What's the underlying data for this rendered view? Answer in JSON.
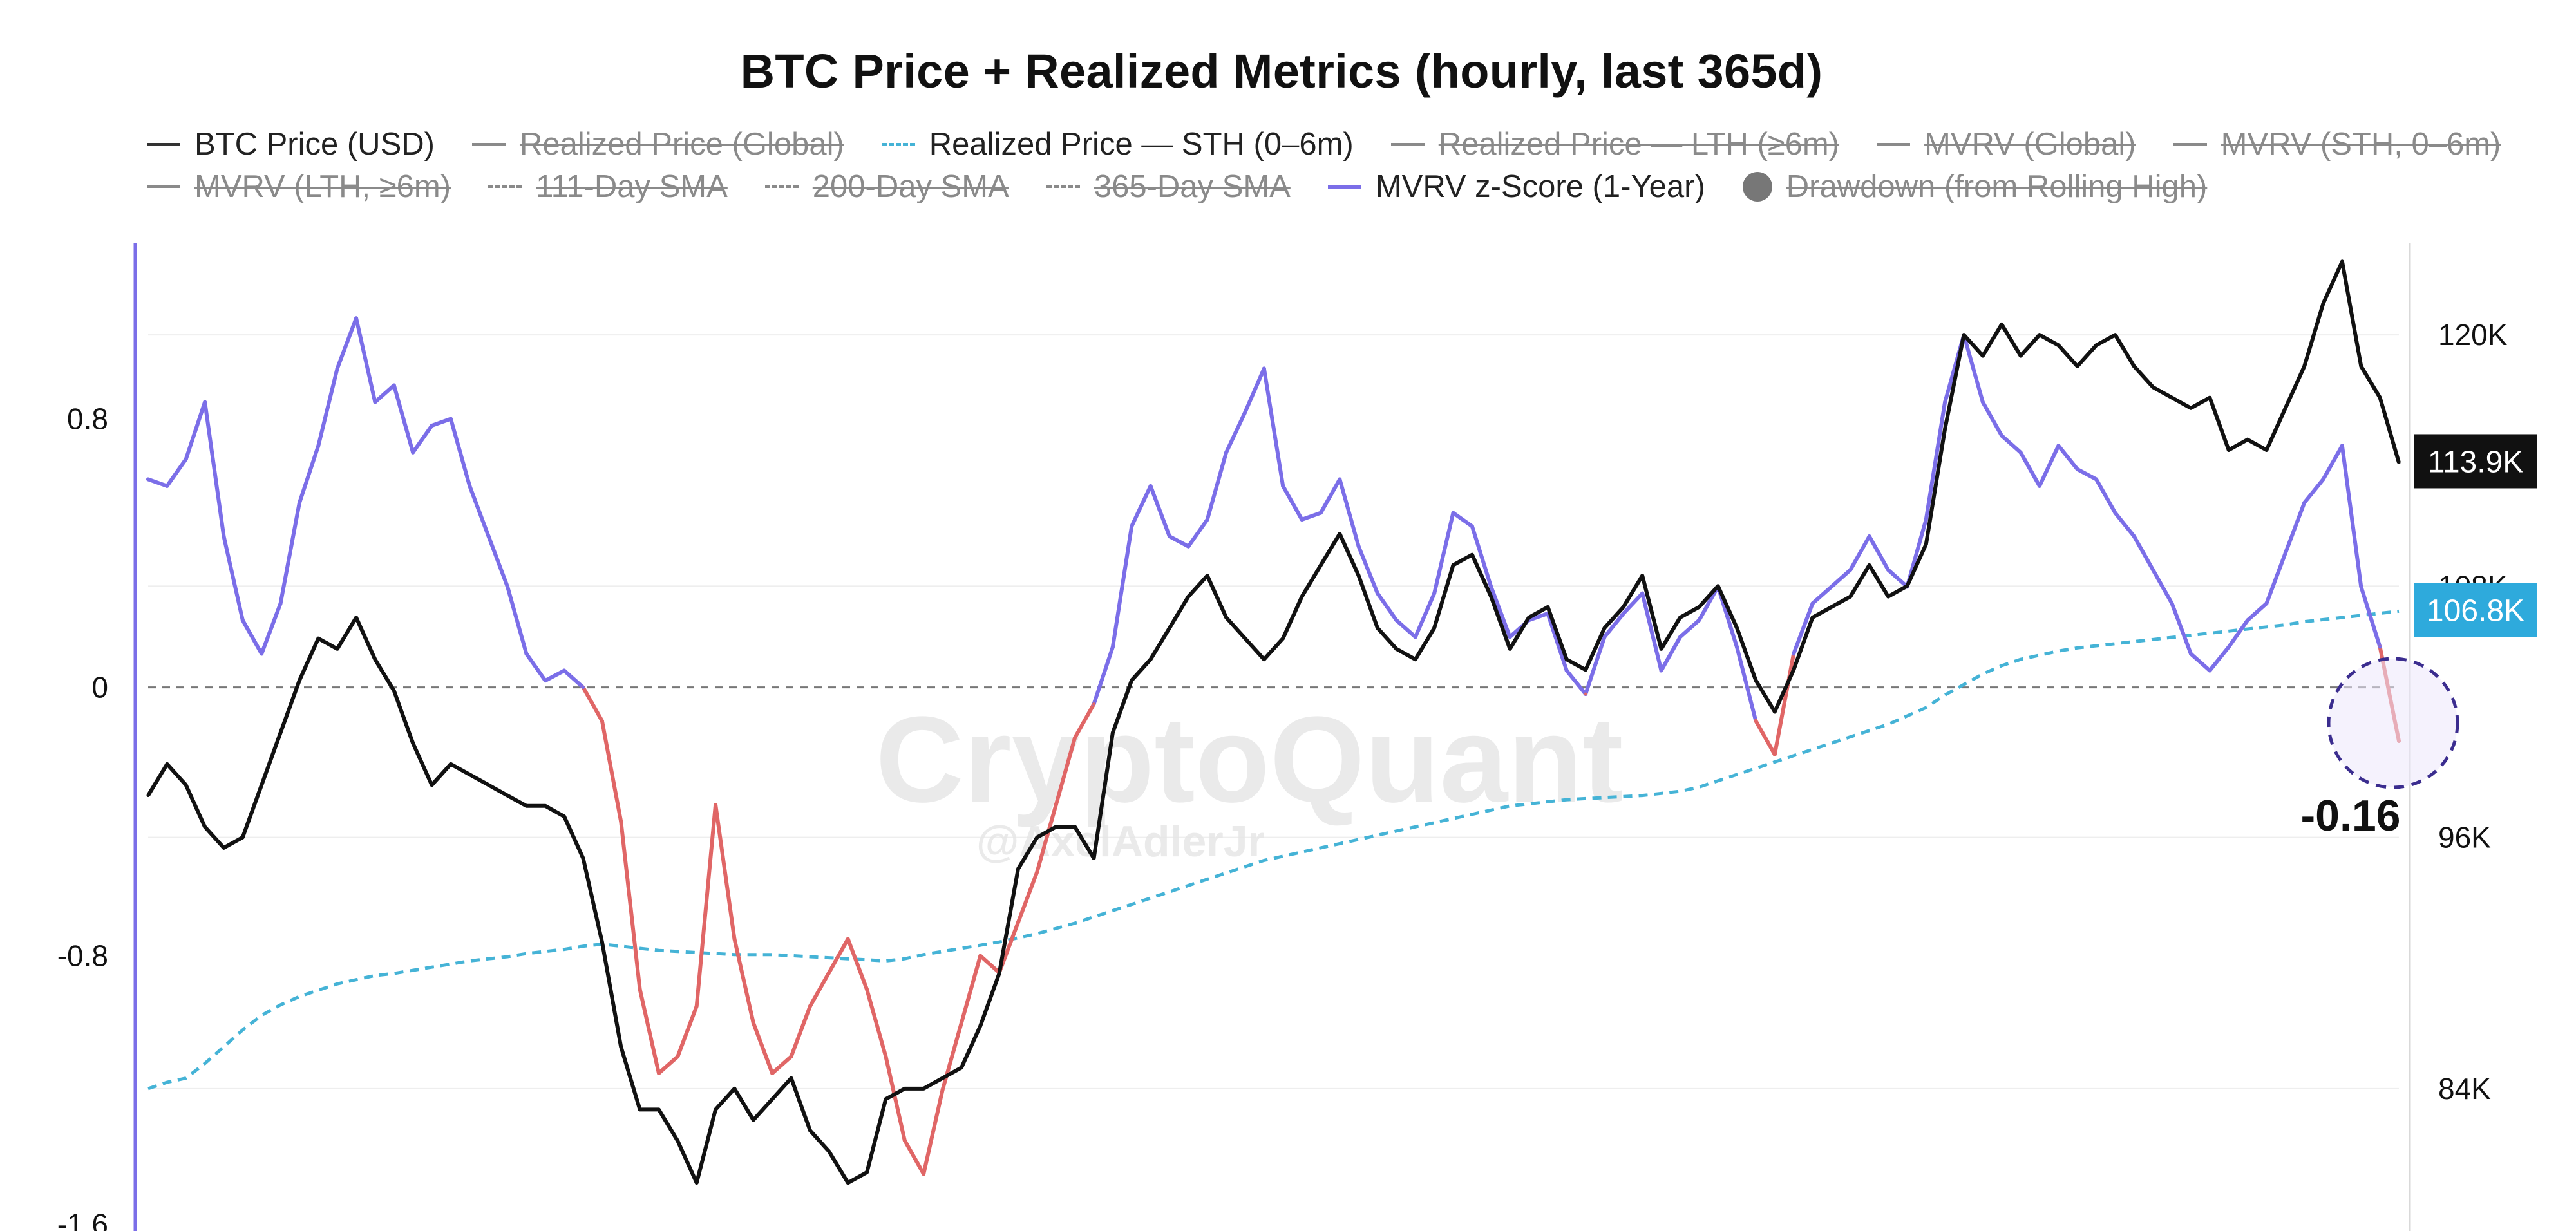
{
  "title": "BTC Price + Realized Metrics (hourly, last 365d)",
  "legend_row_1": [
    {
      "label": "BTC Price (USD)",
      "style": "solid",
      "hidden": false
    },
    {
      "label": "Realized Price (Global)",
      "style": "solid-grey",
      "hidden": true
    },
    {
      "label": "Realized Price — STH (0–6m)",
      "style": "dashed-cyan",
      "hidden": false
    },
    {
      "label": "Realized Price — LTH (≥6m)",
      "style": "solid-grey",
      "hidden": true
    },
    {
      "label": "MVRV (Global)",
      "style": "solid-grey",
      "hidden": true
    },
    {
      "label": "MVRV (STH, 0–6m)",
      "style": "solid-grey",
      "hidden": true
    }
  ],
  "legend_row_2": [
    {
      "label": "MVRV (LTH, ≥6m)",
      "style": "solid-grey",
      "hidden": true
    },
    {
      "label": "111-Day SMA",
      "style": "dashed-grey",
      "hidden": true
    },
    {
      "label": "200-Day SMA",
      "style": "dashed-grey",
      "hidden": true
    },
    {
      "label": "365-Day SMA",
      "style": "dashed-grey",
      "hidden": true
    },
    {
      "label": "MVRV z-Score (1-Year)",
      "style": "solid-purple",
      "hidden": false
    },
    {
      "label": "Drawdown (from Rolling High)",
      "style": "dot",
      "hidden": true
    }
  ],
  "watermark": "CryptoQuant",
  "watermark_handle": "@AxelAdlerJr",
  "annotation": "-0.16",
  "colors": {
    "price": "#111111",
    "zscore_positive": "#7b6ee8",
    "zscore_negative": "#e06666",
    "sth_realized": "#45b3d6",
    "last_price_badge": "#111111",
    "sth_badge": "#2eaadc",
    "left_axis_line": "#7b6ee8"
  },
  "chart_data": {
    "type": "line",
    "title": "BTC Price + Realized Metrics (hourly, last 365d)",
    "left_axis": {
      "ticks": [
        "0.8",
        "0",
        "-0.8",
        "-1.6"
      ],
      "tick_values": [
        0.8,
        0,
        -0.8,
        -1.6
      ],
      "ylim": [
        -1.62,
        1.3
      ]
    },
    "right_axis": {
      "ticks": [
        "120K",
        "108K",
        "96K",
        "84K"
      ],
      "tick_values": [
        120000,
        108000,
        96000,
        84000
      ],
      "ylim": [
        77200,
        124000
      ]
    },
    "x_points": 120,
    "series": [
      {
        "name": "BTC Price (USD)",
        "axis": "right",
        "values": [
          98000,
          99500,
          98500,
          96500,
          95500,
          96000,
          98500,
          101000,
          103500,
          105500,
          105000,
          106500,
          104500,
          103000,
          100500,
          98500,
          99500,
          99000,
          98500,
          98000,
          97500,
          97500,
          97000,
          95000,
          91000,
          86000,
          83000,
          83000,
          81500,
          79500,
          83000,
          84000,
          82500,
          83500,
          84500,
          82000,
          81000,
          79500,
          80000,
          83500,
          84000,
          84000,
          84500,
          85000,
          87000,
          89500,
          94500,
          96000,
          96500,
          96500,
          95000,
          101000,
          103500,
          104500,
          106000,
          107500,
          108500,
          106500,
          105500,
          104500,
          105500,
          107500,
          109000,
          110500,
          108500,
          106000,
          105000,
          104500,
          106000,
          109000,
          109500,
          107500,
          105000,
          106500,
          107000,
          104500,
          104000,
          106000,
          107000,
          108500,
          105000,
          106500,
          107000,
          108000,
          106000,
          103500,
          102000,
          104000,
          106500,
          107000,
          107500,
          109000,
          107500,
          108000,
          110000,
          115500,
          120000,
          119000,
          120500,
          119000,
          120000,
          119500,
          118500,
          119500,
          120000,
          118500,
          117500,
          117000,
          116500,
          117000,
          114500,
          115000,
          114500,
          116500,
          118500,
          121500,
          123500,
          118500,
          117000,
          113900
        ],
        "last_value_label": "113.9K"
      },
      {
        "name": "Realized Price — STH (0–6m)",
        "axis": "right",
        "values": [
          84000,
          84300,
          84500,
          85200,
          86000,
          86800,
          87500,
          88000,
          88400,
          88700,
          89000,
          89200,
          89400,
          89500,
          89650,
          89800,
          89950,
          90100,
          90200,
          90300,
          90450,
          90550,
          90650,
          90800,
          90900,
          90800,
          90700,
          90600,
          90550,
          90500,
          90450,
          90400,
          90400,
          90400,
          90350,
          90300,
          90250,
          90200,
          90150,
          90100,
          90200,
          90400,
          90550,
          90700,
          90850,
          91000,
          91200,
          91400,
          91650,
          91900,
          92200,
          92500,
          92800,
          93100,
          93400,
          93700,
          94000,
          94300,
          94600,
          94900,
          95100,
          95300,
          95500,
          95700,
          95900,
          96100,
          96300,
          96500,
          96700,
          96900,
          97100,
          97300,
          97500,
          97600,
          97700,
          97800,
          97850,
          97900,
          97950,
          98000,
          98100,
          98200,
          98400,
          98700,
          99000,
          99300,
          99600,
          99900,
          100200,
          100500,
          100800,
          101100,
          101400,
          101800,
          102200,
          102800,
          103300,
          103800,
          104200,
          104500,
          104700,
          104900,
          105050,
          105150,
          105250,
          105350,
          105450,
          105550,
          105650,
          105750,
          105850,
          105950,
          106050,
          106150,
          106300,
          106400,
          106500,
          106600,
          106700,
          106800
        ],
        "last_value_label": "106.8K"
      },
      {
        "name": "MVRV z-Score (1-Year)",
        "axis": "left",
        "values": [
          0.62,
          0.6,
          0.68,
          0.85,
          0.45,
          0.2,
          0.1,
          0.25,
          0.55,
          0.72,
          0.95,
          1.1,
          0.85,
          0.9,
          0.7,
          0.78,
          0.8,
          0.6,
          0.45,
          0.3,
          0.1,
          0.02,
          0.05,
          0.0,
          -0.1,
          -0.4,
          -0.9,
          -1.15,
          -1.1,
          -0.95,
          -0.35,
          -0.75,
          -1.0,
          -1.15,
          -1.1,
          -0.95,
          -0.85,
          -0.75,
          -0.9,
          -1.1,
          -1.35,
          -1.45,
          -1.2,
          -1.0,
          -0.8,
          -0.85,
          -0.7,
          -0.55,
          -0.35,
          -0.15,
          -0.05,
          0.12,
          0.48,
          0.6,
          0.45,
          0.42,
          0.5,
          0.7,
          0.82,
          0.95,
          0.6,
          0.5,
          0.52,
          0.62,
          0.42,
          0.28,
          0.2,
          0.15,
          0.28,
          0.52,
          0.48,
          0.3,
          0.15,
          0.2,
          0.22,
          0.05,
          -0.02,
          0.15,
          0.22,
          0.28,
          0.05,
          0.15,
          0.2,
          0.3,
          0.12,
          -0.1,
          -0.2,
          0.1,
          0.25,
          0.3,
          0.35,
          0.45,
          0.35,
          0.3,
          0.5,
          0.85,
          1.05,
          0.85,
          0.75,
          0.7,
          0.6,
          0.72,
          0.65,
          0.62,
          0.52,
          0.45,
          0.35,
          0.25,
          0.1,
          0.05,
          0.12,
          0.2,
          0.25,
          0.4,
          0.55,
          0.62,
          0.72,
          0.3,
          0.12,
          -0.16
        ],
        "last_value_label": "-0.16"
      }
    ],
    "grid": true,
    "zero_line": "dashed",
    "legend_position": "top"
  }
}
